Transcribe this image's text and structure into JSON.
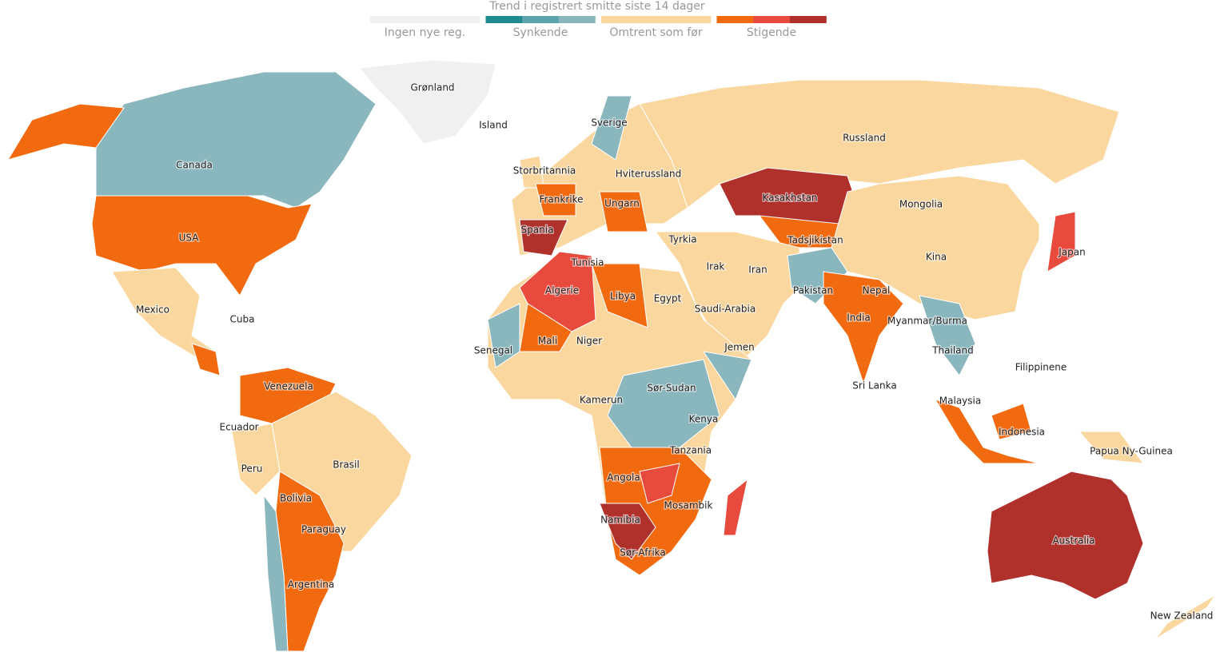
{
  "legend": {
    "title": "Trend i registrert smitte siste 14 dager",
    "items": [
      {
        "label": "Ingen nye reg.",
        "colors": [
          "#f0f0f0"
        ]
      },
      {
        "label": "Synkende",
        "colors": [
          "#1f8a8f",
          "#5ba3ad",
          "#8ab6bd"
        ]
      },
      {
        "label": "Omtrent som før",
        "colors": [
          "#fbd7a0"
        ]
      },
      {
        "label": "Stigende",
        "colors": [
          "#f26a0f",
          "#e84a3d",
          "#b0302c"
        ]
      }
    ]
  },
  "labels": [
    "Grønland",
    "Island",
    "Sverige",
    "Canada",
    "Russland",
    "Storbritannia",
    "Hviterussland",
    "Kasakhstan",
    "Frankrike",
    "Ungarn",
    "Mongolia",
    "USA",
    "Spania",
    "Tyrkia",
    "Tadsjikistan",
    "Japan",
    "Tunisia",
    "Kina",
    "Irak",
    "Iran",
    "Algerie",
    "Pakistan",
    "Nepal",
    "Libya",
    "Egypt",
    "Mexico",
    "Saudi-Arabia",
    "Cuba",
    "India",
    "Myanmar/Burma",
    "Mali",
    "Niger",
    "Jemen",
    "Senegal",
    "Thailand",
    "Filippinene",
    "Sør-Sudan",
    "Venezuela",
    "Sri Lanka",
    "Kamerun",
    "Malaysia",
    "Kenya",
    "Ecuador",
    "Indonesia",
    "Tanzania",
    "Papua Ny-Guinea",
    "Brasil",
    "Peru",
    "Angola",
    "Bolivia",
    "Mosambik",
    "Namibia",
    "Paraguay",
    "Australia",
    "Sør-Afrika",
    "Argentina",
    "New Zealand"
  ]
}
